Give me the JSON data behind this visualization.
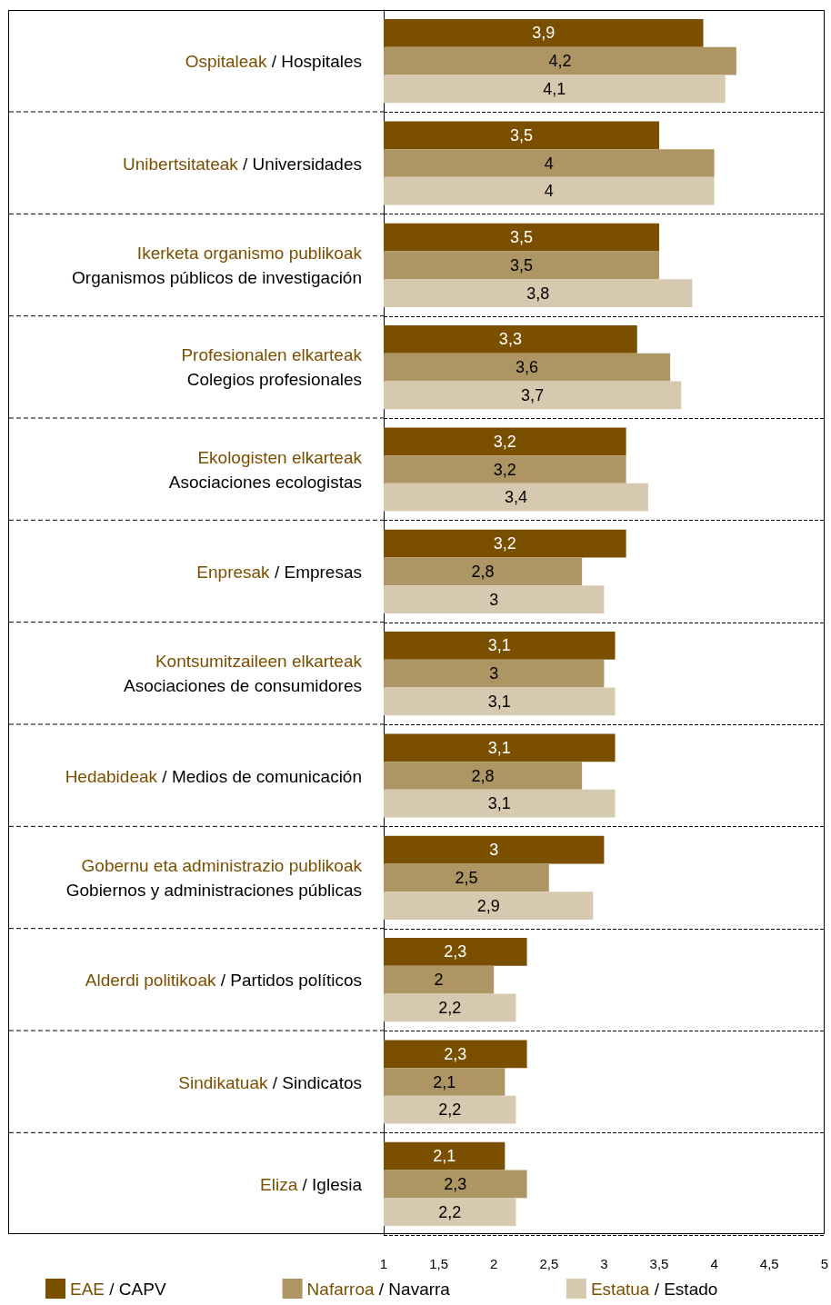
{
  "chart_data": {
    "type": "bar",
    "orientation": "horizontal",
    "categories": [
      "Ospitaleak / Hospitales",
      "Unibertsitateak / Universidades",
      "Ikerketa organismo publikoak\nOrganismos públicos de investigación",
      "Profesionalen elkarteak\nColegios profesionales",
      "Ekologisten elkarteak\nAsociaciones ecologistas",
      "Enpresak / Empresas",
      "Kontsumitzaileen elkarteak\nAsociaciones de consumidores",
      "Hedabideak / Medios de comunicación",
      "Gobernu eta administrazio publikoak\nGobiernos y administraciones públicas",
      "Alderdi politikoak / Partidos políticos",
      "Sindikatuak / Sindicatos",
      "Eliza / Iglesia"
    ],
    "series": [
      {
        "name": "EAE / CAPV",
        "color": "#7a4f00",
        "values": [
          3.9,
          3.5,
          3.5,
          3.3,
          3.2,
          3.2,
          3.1,
          3.1,
          3,
          2.3,
          2.3,
          2.1
        ],
        "value_labels": [
          "3,9",
          "3,5",
          "3,5",
          "3,3",
          "3,2",
          "3,2",
          "3,1",
          "3,1",
          "3",
          "2,3",
          "2,3",
          "2,1"
        ]
      },
      {
        "name": "Nafarroa / Navarra",
        "color": "#ad9564",
        "values": [
          4.2,
          4,
          3.5,
          3.6,
          3.2,
          2.8,
          3,
          2.8,
          2.5,
          2,
          2.1,
          2.3
        ],
        "value_labels": [
          "4,2",
          "4",
          "3,5",
          "3,6",
          "3,2",
          "2,8",
          "3",
          "2,8",
          "2,5",
          "2",
          "2,1",
          "2,3"
        ]
      },
      {
        "name": "Estatua / Estado",
        "color": "#d6c9b0",
        "values": [
          4.1,
          4,
          3.8,
          3.7,
          3.4,
          3,
          3.1,
          3.1,
          2.9,
          2.2,
          2.2,
          2.2
        ],
        "value_labels": [
          "4,1",
          "4",
          "3,8",
          "3,7",
          "3,4",
          "3",
          "3,1",
          "3,1",
          "2,9",
          "2,2",
          "2,2",
          "2,2"
        ]
      }
    ],
    "xlim": [
      1,
      5
    ],
    "xticks": [
      1,
      {
        "value": 1.5,
        "label": "1,5"
      },
      2,
      {
        "value": 2.5,
        "label": "2,5"
      },
      3,
      {
        "value": 3.5,
        "label": "3,5"
      },
      4,
      {
        "value": 4.5,
        "label": "4,5"
      },
      5
    ],
    "grid": "y",
    "legend": "bottom"
  }
}
